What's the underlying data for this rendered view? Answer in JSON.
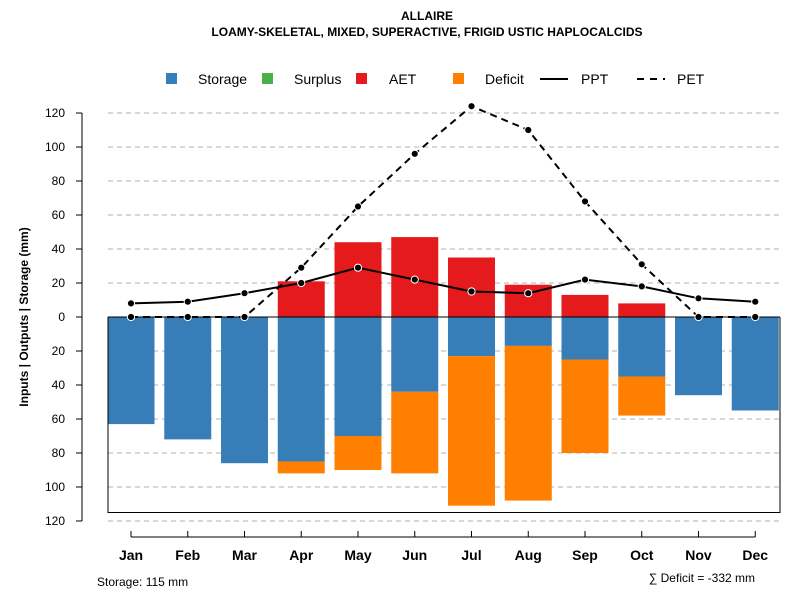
{
  "chart_data": {
    "type": "bar",
    "title": "ALLAIRE",
    "subtitle": "LOAMY-SKELETAL, MIXED, SUPERACTIVE, FRIGID USTIC HAPLOCALCIDS",
    "ylabel": "Inputs | Outputs | Storage    (mm)",
    "ylim": [
      -120,
      120
    ],
    "yticks": [
      120,
      100,
      80,
      60,
      40,
      20,
      0,
      20,
      40,
      60,
      80,
      100,
      120
    ],
    "grid": true,
    "categories": [
      "Jan",
      "Feb",
      "Mar",
      "Apr",
      "May",
      "Jun",
      "Jul",
      "Aug",
      "Sep",
      "Oct",
      "Nov",
      "Dec"
    ],
    "legend": {
      "position": "top",
      "entries": [
        {
          "label": "Storage",
          "kind": "square",
          "color": "#377EB8"
        },
        {
          "label": "Surplus",
          "kind": "square",
          "color": "#4DAF4A"
        },
        {
          "label": "AET",
          "kind": "square",
          "color": "#E41A1C"
        },
        {
          "label": "Deficit",
          "kind": "square",
          "color": "#FF7F00"
        },
        {
          "label": "PPT",
          "kind": "solid-line",
          "color": "#000000"
        },
        {
          "label": "PET",
          "kind": "dashed-line",
          "color": "#000000"
        }
      ]
    },
    "series": [
      {
        "name": "AET",
        "color": "#E41A1C",
        "direction": "up",
        "values": [
          0,
          0,
          0,
          21,
          44,
          47,
          35,
          19,
          13,
          8,
          0,
          0
        ]
      },
      {
        "name": "Surplus",
        "color": "#4DAF4A",
        "direction": "up",
        "values": [
          0,
          0,
          0,
          0,
          0,
          0,
          0,
          0,
          0,
          0,
          0,
          0
        ]
      },
      {
        "name": "Storage",
        "color": "#377EB8",
        "direction": "down",
        "values": [
          63,
          72,
          86,
          85,
          70,
          44,
          23,
          17,
          25,
          35,
          46,
          55
        ]
      },
      {
        "name": "Deficit",
        "color": "#FF7F00",
        "direction": "down",
        "values": [
          0,
          0,
          0,
          7,
          20,
          48,
          88,
          91,
          55,
          23,
          0,
          0
        ]
      },
      {
        "name": "PPT",
        "color": "#000000",
        "style": "solid",
        "values": [
          8,
          9,
          14,
          20,
          29,
          22,
          15,
          14,
          22,
          18,
          11,
          9
        ]
      },
      {
        "name": "PET",
        "color": "#000000",
        "style": "dashed",
        "values": [
          0,
          0,
          0,
          29,
          65,
          96,
          124,
          110,
          68,
          31,
          0,
          0
        ]
      }
    ],
    "storage_capacity": 115,
    "footnote_left": "Storage: 115 mm",
    "footnote_right": "∑ Deficit = -332 mm"
  }
}
